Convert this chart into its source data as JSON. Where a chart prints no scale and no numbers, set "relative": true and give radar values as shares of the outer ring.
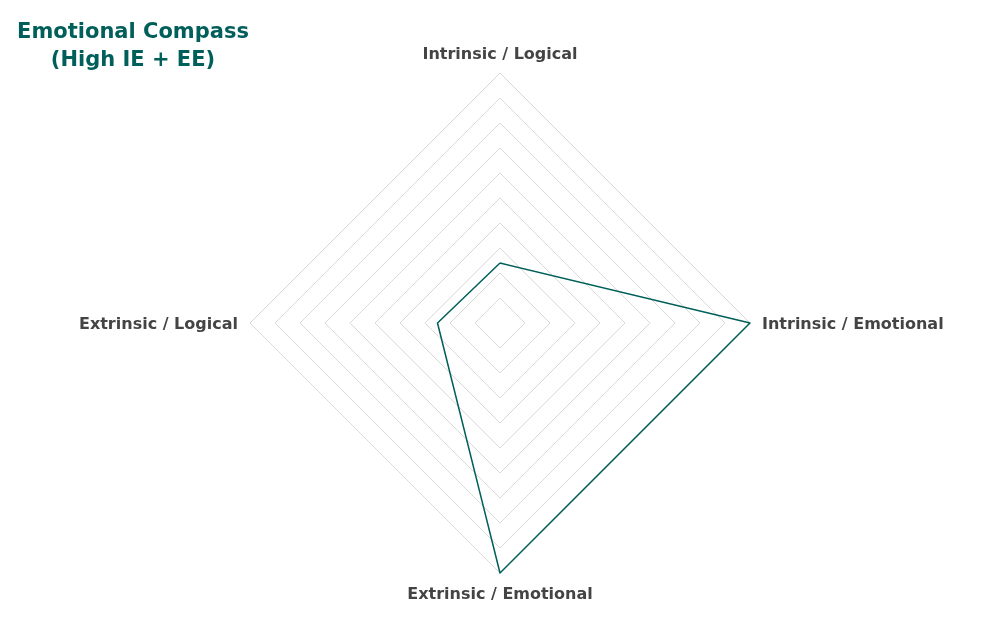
{
  "chart_data": {
    "type": "radar",
    "title": "Emotional Compass\n(High IE + EE)",
    "relative": true,
    "categories": [
      "Intrinsic / Logical",
      "Intrinsic / Emotional",
      "Extrinsic / Emotional",
      "Extrinsic / Logical"
    ],
    "series": [
      {
        "color": "#005f5a",
        "values": [
          0.24,
          1,
          1,
          0.25
        ]
      }
    ],
    "marker": "none",
    "grid": true
  }
}
